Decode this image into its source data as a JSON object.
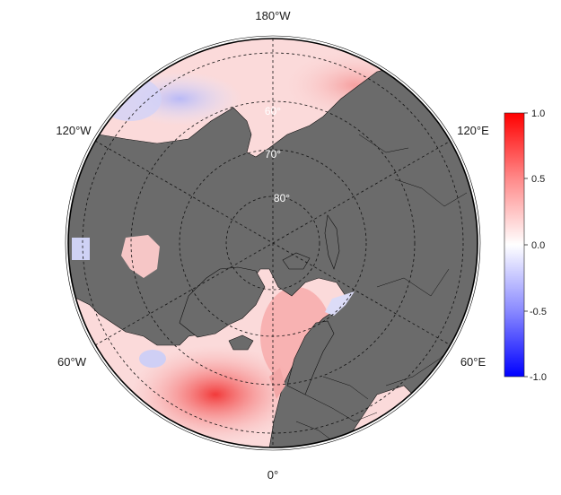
{
  "map": {
    "projection": "north-polar-stereographic",
    "longitude_labels": {
      "top": "180°W",
      "bottom": "0°",
      "upper_left": "120°W",
      "upper_right": "120°E",
      "lower_left": "60°W",
      "lower_right": "60°E"
    },
    "latitude_labels": [
      "60°",
      "70°",
      "80°"
    ],
    "land_color": "#6b6b6b",
    "ocean_gradient": "anomaly"
  },
  "colorbar": {
    "ticks": [
      "1.0",
      "0.5",
      "0.0",
      "-0.5",
      "-1.0"
    ],
    "min": -1.0,
    "max": 1.0,
    "color_high": "#ff0000",
    "color_mid": "#ffffff",
    "color_low": "#0000ff"
  }
}
